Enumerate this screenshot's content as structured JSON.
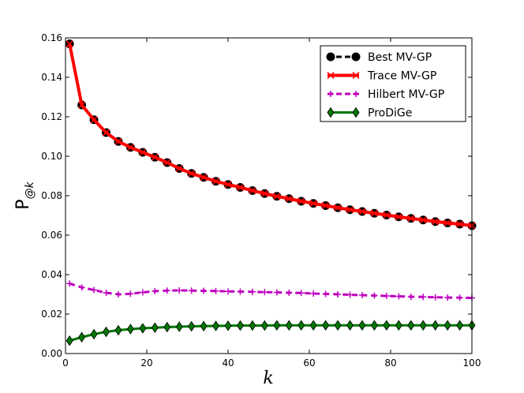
{
  "chart_data": {
    "type": "line",
    "title": "",
    "xlabel": "k",
    "ylabel": "P",
    "ylabel_subscript": "@k",
    "xlim": [
      0,
      100
    ],
    "ylim": [
      0.0,
      0.16
    ],
    "x_ticks": [
      "0",
      "20",
      "40",
      "60",
      "80",
      "100"
    ],
    "y_ticks": [
      "0.00",
      "0.02",
      "0.04",
      "0.06",
      "0.08",
      "0.10",
      "0.12",
      "0.14",
      "0.16"
    ],
    "legend_position": "top-right",
    "x": [
      1,
      4,
      7,
      10,
      13,
      16,
      19,
      22,
      25,
      28,
      31,
      34,
      37,
      40,
      43,
      46,
      49,
      52,
      55,
      58,
      61,
      64,
      67,
      70,
      73,
      76,
      79,
      82,
      85,
      88,
      91,
      94,
      97,
      100
    ],
    "series": [
      {
        "name": "Best MV-GP",
        "color": "#000000",
        "style": "dashed-circle",
        "values": [
          0.157,
          0.126,
          0.1185,
          0.112,
          0.1075,
          0.1045,
          0.102,
          0.0995,
          0.0968,
          0.0938,
          0.0913,
          0.0893,
          0.0873,
          0.0857,
          0.0842,
          0.0826,
          0.0811,
          0.0797,
          0.0785,
          0.0772,
          0.0761,
          0.075,
          0.0739,
          0.0729,
          0.072,
          0.0711,
          0.0702,
          0.0693,
          0.0685,
          0.0677,
          0.0669,
          0.0662,
          0.0656,
          0.0648
        ]
      },
      {
        "name": "Trace MV-GP",
        "color": "#ff0000",
        "style": "solid-x",
        "values": [
          0.157,
          0.126,
          0.1185,
          0.112,
          0.1075,
          0.1045,
          0.102,
          0.0995,
          0.0968,
          0.0938,
          0.0913,
          0.0893,
          0.0873,
          0.0857,
          0.0842,
          0.0826,
          0.0811,
          0.0797,
          0.0785,
          0.0772,
          0.0761,
          0.075,
          0.0739,
          0.0729,
          0.072,
          0.0711,
          0.0702,
          0.0693,
          0.0685,
          0.0677,
          0.0669,
          0.0662,
          0.0656,
          0.0648
        ]
      },
      {
        "name": "Hilbert MV-GP",
        "color": "#bf00bf",
        "style": "dashed-plus",
        "values": [
          0.0355,
          0.0335,
          0.0322,
          0.0308,
          0.03,
          0.0303,
          0.031,
          0.0316,
          0.0319,
          0.032,
          0.0319,
          0.0318,
          0.0317,
          0.0315,
          0.0314,
          0.0313,
          0.0311,
          0.031,
          0.0308,
          0.0307,
          0.0304,
          0.0302,
          0.03,
          0.0298,
          0.0296,
          0.0294,
          0.0292,
          0.029,
          0.0288,
          0.0287,
          0.0285,
          0.0284,
          0.0283,
          0.0282
        ]
      },
      {
        "name": "ProDiGe",
        "color": "#007700",
        "style": "solid-diamond",
        "values": [
          0.0065,
          0.0083,
          0.0098,
          0.011,
          0.0118,
          0.0124,
          0.0128,
          0.0131,
          0.0134,
          0.0136,
          0.0138,
          0.0139,
          0.014,
          0.0141,
          0.0142,
          0.0142,
          0.0142,
          0.0143,
          0.0143,
          0.0143,
          0.0143,
          0.0143,
          0.0143,
          0.0143,
          0.0143,
          0.0143,
          0.0143,
          0.0143,
          0.0143,
          0.0143,
          0.0143,
          0.0143,
          0.0143,
          0.0143
        ]
      }
    ]
  }
}
